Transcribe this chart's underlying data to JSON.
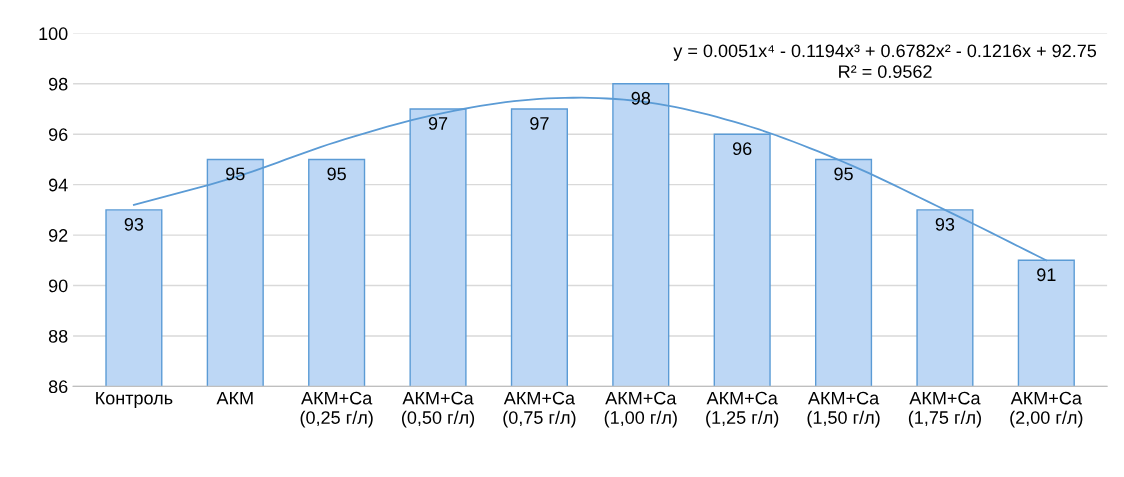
{
  "chart_data": {
    "type": "bar",
    "categories": [
      "Контроль",
      "АКМ",
      "АКМ+Ca\n(0,25 г/л)",
      "АКМ+Ca\n(0,50 г/л)",
      "АКМ+Ca\n(0,75 г/л)",
      "АКМ+Ca\n(1,00 г/л)",
      "АКМ+Ca\n(1,25 г/л)",
      "АКМ+Ca\n(1,50 г/л)",
      "АКМ+Ca\n(1,75 г/л)",
      "АКМ+Ca\n(2,00 г/л)"
    ],
    "series": [
      {
        "color": "#bdd7f5",
        "values": [
          93,
          95,
          95,
          97,
          97,
          98,
          96,
          95,
          93,
          91
        ],
        "value_labels": [
          "93",
          "95",
          "95",
          "97",
          "97",
          "98",
          "96",
          "95",
          "93",
          "91"
        ]
      },
      {
        "type": "line",
        "color": "#5b9bd5",
        "x": [
          "Контроль",
          "АКМ",
          "АКМ+Ca\n(0,25 г/л)",
          "АКМ+Ca\n(0,50 г/л)",
          "АКМ+Ca\n(0,75 г/л)",
          "АКМ+Ca\n(1,00 г/л)",
          "АКМ+Ca\n(1,25 г/л)",
          "АКМ+Ca\n(1,50 г/л)",
          "АКМ+Ca\n(1,75 г/л)",
          "АКМ+Ca\n(2,00 г/л)"
        ],
        "values": [
          93.2,
          94.3,
          95.7,
          96.8,
          97.4,
          97.3,
          96.4,
          94.9,
          93.0,
          91.0
        ]
      }
    ],
    "ylim": [
      86,
      100
    ],
    "yticks": [
      86,
      88,
      90,
      92,
      94,
      96,
      98,
      100
    ],
    "grid": "y",
    "legend": false,
    "annotations": [
      "y = 0.0051x⁴ - 0.1194x³ + 0.6782x² - 0.1216x + 92.75\nR² = 0.9562"
    ]
  }
}
